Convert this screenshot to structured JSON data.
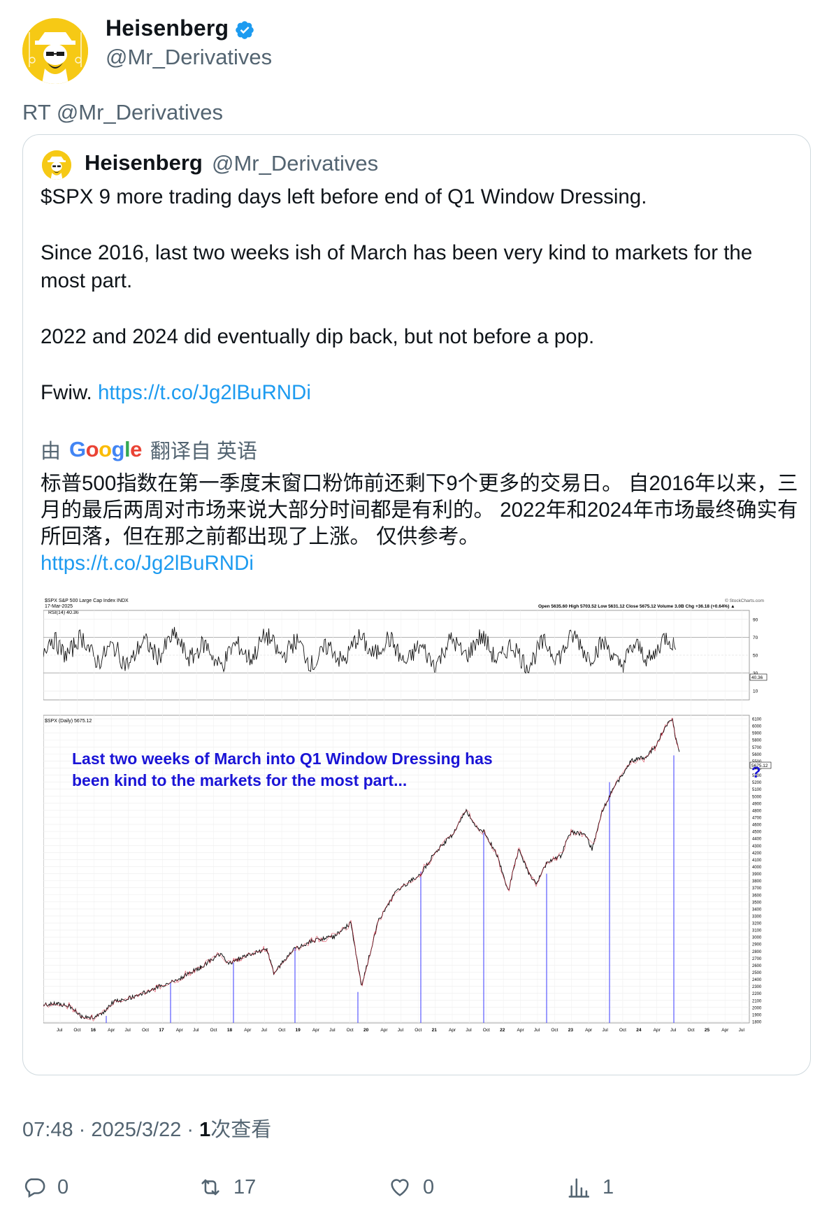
{
  "author": {
    "name": "Heisenberg",
    "handle": "@Mr_Derivatives",
    "verified": true,
    "avatar_icon": "heisenberg-avatar-icon"
  },
  "retweet_label": "RT @Mr_Derivatives",
  "quoted": {
    "name": "Heisenberg",
    "handle": "@Mr_Derivatives",
    "paragraphs": [
      "$SPX 9 more trading days left before end of Q1 Window Dressing.",
      "Since 2016, last two weeks ish of March has been very kind to markets for the most part.",
      "2022 and 2024 did eventually dip back, but not before a pop."
    ],
    "fwiw_prefix": "Fwiw.",
    "link": "https://t.co/Jg2lBuRNDi",
    "translation": {
      "by": "由",
      "google": "Google",
      "from": "翻译自 英语",
      "text": "标普500指数在第一季度末窗口粉饰前还剩下9个更多的交易日。 自2016年以来，三月的最后两周对市场来说大部分时间都是有利的。 2022年和2024年市场最终确实有所回落，但在那之前都出现了上涨。 仅供参考。",
      "link": "https://t.co/Jg2lBuRNDi"
    },
    "chart": {
      "header_left": "$SPX S&P 500 Large Cap Index INDX",
      "date": "17-Mar-2025",
      "header_right": "Open 5635.60  High 5703.52  Low 5631.12  Close 5675.12  Volume 3.0B  Chg +36.18 (+0.64%) ▲",
      "brand": "© StockCharts.com",
      "rsi_label": "RSI(14) 40.36",
      "rsi_value_tag": "40.36",
      "rsi_ticks": [
        "90",
        "70",
        "50",
        "30",
        "10"
      ],
      "price_label": "$SPX (Daily) 5675.12",
      "price_tag": "5675.12",
      "price_ticks": [
        "6100",
        "6000",
        "5900",
        "5800",
        "5700",
        "5600",
        "5500",
        "5400",
        "5300",
        "5200",
        "5100",
        "5000",
        "4900",
        "4800",
        "4700",
        "4600",
        "4500",
        "4400",
        "4300",
        "4200",
        "4100",
        "4000",
        "3900",
        "3800",
        "3700",
        "3600",
        "3500",
        "3400",
        "3300",
        "3200",
        "3100",
        "3000",
        "2900",
        "2800",
        "2700",
        "2600",
        "2500",
        "2400",
        "2300",
        "2200",
        "2100",
        "2000",
        "1900",
        "1800"
      ],
      "x_labels": [
        "Jul",
        "Oct",
        "16",
        "Apr",
        "Jul",
        "Oct",
        "17",
        "Apr",
        "Jul",
        "Oct",
        "18",
        "Apr",
        "Jul",
        "Oct",
        "19",
        "Apr",
        "Jul",
        "Oct",
        "20",
        "Apr",
        "Jul",
        "Oct",
        "21",
        "Apr",
        "Jul",
        "Oct",
        "22",
        "Apr",
        "Jul",
        "Oct",
        "23",
        "Apr",
        "Jul",
        "Oct",
        "24",
        "Apr",
        "Jul",
        "Oct",
        "25",
        "Apr",
        "Jul"
      ],
      "annotation_line1": "Last two weeks of March into Q1 Window Dressing has",
      "annotation_line2": "been kind to the markets for the most part...",
      "question_mark": "?"
    }
  },
  "timestamp": "07:48 · 2025/3/22 · ",
  "views_count": "1",
  "views_label": "次查看",
  "actions": [
    {
      "icon": "reply-icon",
      "count": "0"
    },
    {
      "icon": "retweet-icon",
      "count": "17"
    },
    {
      "icon": "like-icon",
      "count": "0"
    },
    {
      "icon": "views-icon",
      "count": "1"
    }
  ]
}
